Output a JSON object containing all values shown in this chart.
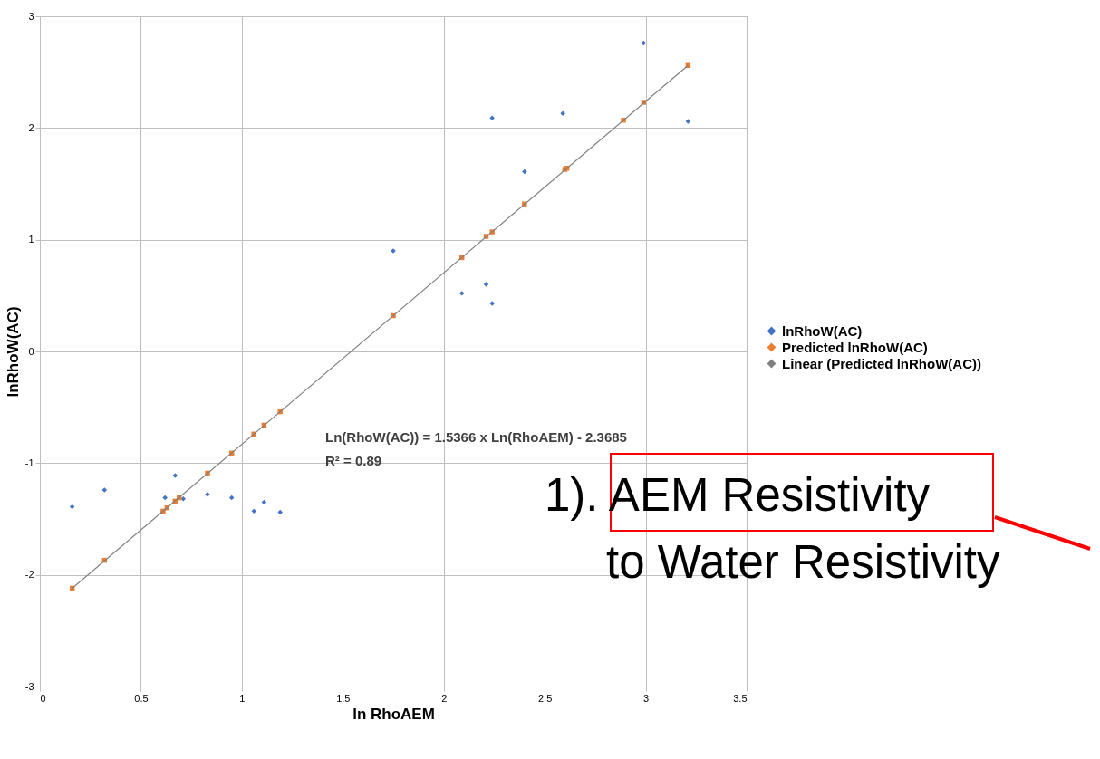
{
  "chart_data": {
    "type": "scatter",
    "xlabel": "ln RhoAEM",
    "ylabel": "lnRhoW(AC)",
    "xlim": [
      0,
      3.5
    ],
    "xticks": [
      0,
      0.5,
      1,
      1.5,
      2,
      2.5,
      3,
      3.5
    ],
    "ylim": [
      -3,
      3
    ],
    "yticks": [
      -3,
      -2,
      -1,
      0,
      1,
      2,
      3
    ],
    "grid": true,
    "legend": "right",
    "series": [
      {
        "name": "lnRhoW(AC)",
        "marker": "diamond",
        "color": "#4472c4",
        "x": [
          0.16,
          0.32,
          0.62,
          0.67,
          0.71,
          0.83,
          0.95,
          1.06,
          1.11,
          1.19,
          1.75,
          2.09,
          2.21,
          2.24,
          2.24,
          2.4,
          2.59,
          2.99,
          3.21
        ],
        "values": [
          -1.39,
          -1.24,
          -1.31,
          -1.11,
          -1.32,
          -1.28,
          -1.31,
          -1.43,
          -1.35,
          -1.44,
          0.9,
          0.52,
          0.6,
          0.43,
          2.09,
          1.61,
          2.13,
          2.76,
          2.06
        ]
      },
      {
        "name": "Predicted lnRhoW(AC)",
        "marker": "square",
        "color": "#ed7d31",
        "x": [
          0.16,
          0.32,
          0.61,
          0.63,
          0.67,
          0.69,
          0.83,
          0.95,
          1.06,
          1.11,
          1.19,
          1.75,
          2.09,
          2.21,
          2.24,
          2.4,
          2.6,
          2.61,
          2.89,
          2.99,
          3.21
        ],
        "values": [
          -2.12,
          -1.87,
          -1.43,
          -1.4,
          -1.34,
          -1.31,
          -1.09,
          -0.91,
          -0.74,
          -0.66,
          -0.54,
          0.32,
          0.84,
          1.03,
          1.07,
          1.32,
          1.63,
          1.64,
          2.07,
          2.23,
          2.56
        ]
      },
      {
        "name": "Linear (Predicted lnRhoW(AC))",
        "type": "line",
        "color": "#808080",
        "x": [
          0.16,
          3.21
        ],
        "values": [
          -2.12,
          2.56
        ]
      }
    ],
    "annotations": [
      "Ln(RhoW(AC)) = 1.5366 x Ln(RhoAEM) - 2.3685",
      "R² = 0.89",
      "1).  AEM Resistivity",
      "to Water Resistivity"
    ]
  }
}
